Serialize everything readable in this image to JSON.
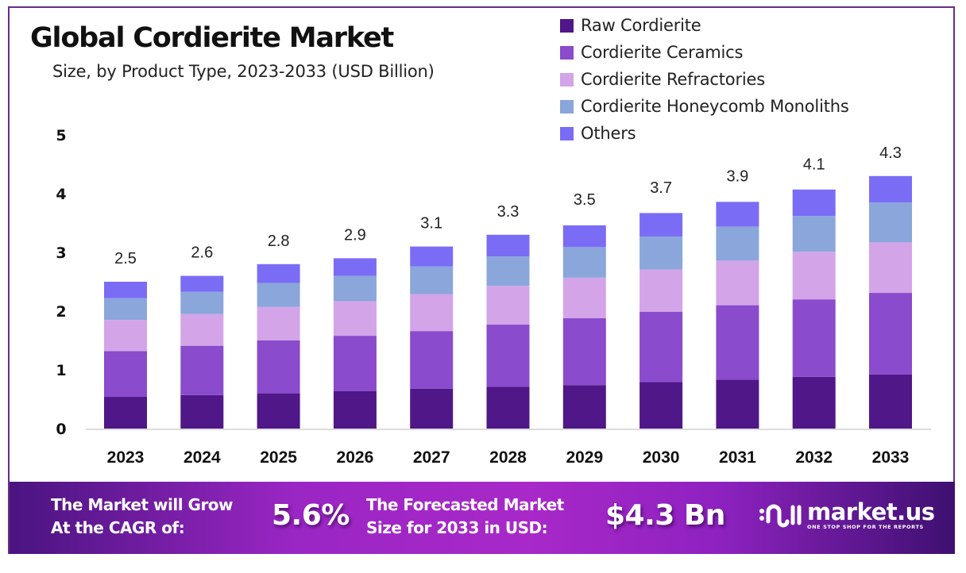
{
  "chart_data": {
    "type": "bar",
    "stacked": true,
    "title": "Global Cordierite Market",
    "subtitle": "Size, by Product Type, 2023-2033 (USD Billion)",
    "xlabel": "",
    "ylabel": "",
    "ylim": [
      0,
      5
    ],
    "yticks": [
      "0",
      "1",
      "2",
      "3",
      "4",
      "5"
    ],
    "grid": false,
    "legend_position": "top-right",
    "categories": [
      "2023",
      "2024",
      "2025",
      "2026",
      "2027",
      "2028",
      "2029",
      "2030",
      "2031",
      "2032",
      "2033"
    ],
    "totals": [
      2.5,
      2.6,
      2.8,
      2.9,
      3.1,
      3.3,
      3.5,
      3.7,
      3.9,
      4.1,
      4.3
    ],
    "total_labels": [
      "2.5",
      "2.6",
      "2.8",
      "2.9",
      "3.1",
      "3.3",
      "3.5",
      "3.7",
      "3.9",
      "4.1",
      "4.3"
    ],
    "series": [
      {
        "name": "Raw Cordierite",
        "color": "#4f1787",
        "values": [
          0.54,
          0.57,
          0.6,
          0.64,
          0.68,
          0.71,
          0.74,
          0.79,
          0.83,
          0.88,
          0.92
        ]
      },
      {
        "name": "Cordierite Ceramics",
        "color": "#8a4bcc",
        "values": [
          0.78,
          0.84,
          0.9,
          0.94,
          0.98,
          1.06,
          1.14,
          1.2,
          1.27,
          1.32,
          1.39
        ]
      },
      {
        "name": "Cordierite Refractories",
        "color": "#d3a4e8",
        "values": [
          0.53,
          0.54,
          0.57,
          0.59,
          0.63,
          0.66,
          0.69,
          0.72,
          0.76,
          0.81,
          0.86
        ]
      },
      {
        "name": "Cordierite Honeycomb Monoliths",
        "color": "#8aa6da",
        "values": [
          0.37,
          0.38,
          0.41,
          0.43,
          0.47,
          0.5,
          0.52,
          0.56,
          0.58,
          0.61,
          0.68
        ]
      },
      {
        "name": "Others",
        "color": "#7b6cf6",
        "values": [
          0.28,
          0.27,
          0.32,
          0.3,
          0.34,
          0.37,
          0.37,
          0.4,
          0.42,
          0.45,
          0.45
        ]
      }
    ]
  },
  "banner": {
    "cagr_text_line1": "The Market will Grow",
    "cagr_text_line2": "At the CAGR of:",
    "cagr_value": "5.6%",
    "forecast_text_line1": "The Forecasted Market",
    "forecast_text_line2": "Size for 2033 in USD:",
    "forecast_value": "$4.3 Bn",
    "logo_name": "market.us",
    "logo_tagline": "ONE STOP SHOP FOR THE REPORTS"
  },
  "colors": {
    "frame_border": "#6a2c86",
    "banner_dark": "#4a1480",
    "banner_light": "#a828c8"
  }
}
